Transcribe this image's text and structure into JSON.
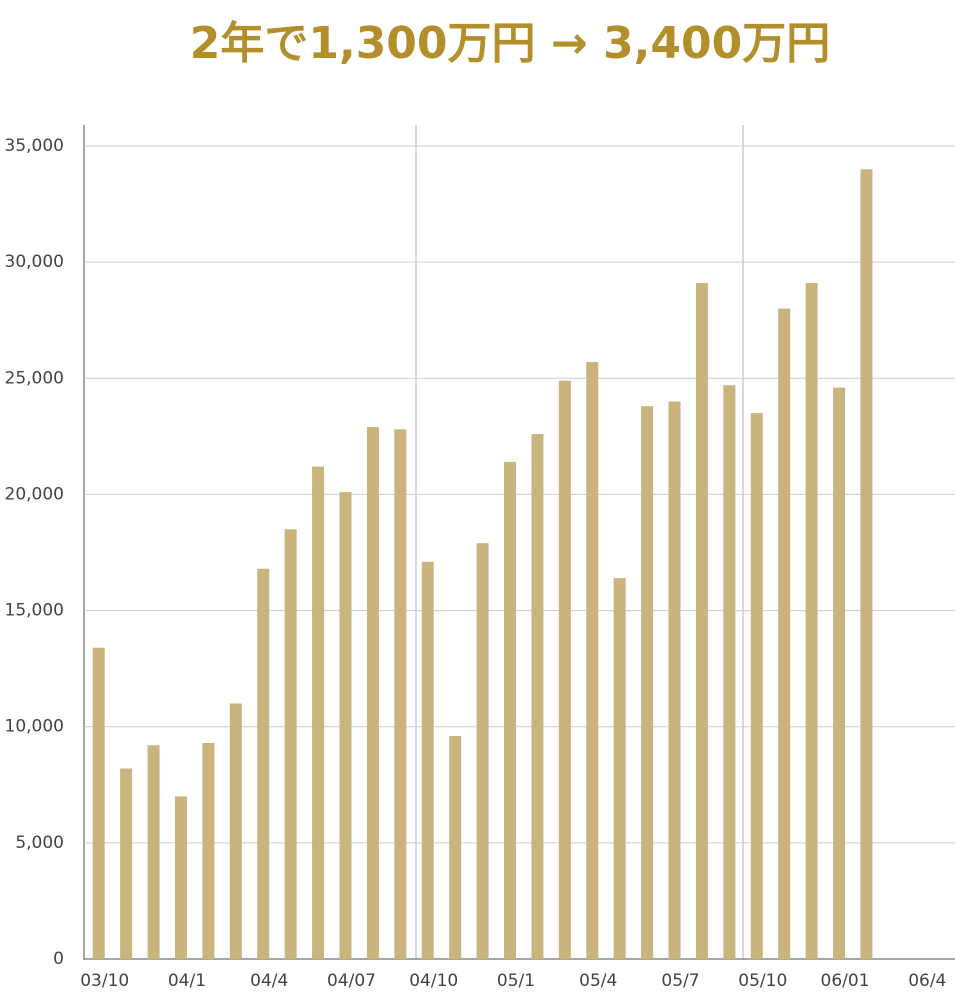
{
  "chart_data": {
    "type": "bar",
    "title": "2年で1,300万円 → 3,400万円",
    "categories": [
      "03/10",
      null,
      null,
      "04/1",
      null,
      null,
      "04/4",
      null,
      null,
      "04/07",
      null,
      null,
      "04/10",
      null,
      null,
      "05/1",
      null,
      null,
      "05/4",
      null,
      null,
      "05/7",
      null,
      null,
      "05/10",
      null,
      null,
      "06/01",
      null,
      null,
      "06/4"
    ],
    "values": [
      13400,
      8200,
      9200,
      7000,
      9300,
      11000,
      16800,
      18500,
      21200,
      20100,
      22900,
      22800,
      17100,
      9600,
      17900,
      21400,
      22600,
      24900,
      25700,
      16400,
      23800,
      24000,
      29100,
      24700,
      23500,
      28000,
      29100,
      24600,
      34000,
      null,
      null
    ],
    "color": "#c9b47e",
    "ylim": [
      0,
      35000
    ],
    "yticks": [
      0,
      {
        "value": 5000,
        "label": "5,000"
      },
      {
        "value": 10000,
        "label": "10,000"
      },
      {
        "value": 15000,
        "label": "15,000"
      },
      {
        "value": 20000,
        "label": "20,000"
      },
      {
        "value": 25000,
        "label": "25,000"
      },
      {
        "value": 30000,
        "label": "30,000"
      },
      {
        "value": 35000,
        "label": "35,000"
      }
    ],
    "grid": true
  }
}
